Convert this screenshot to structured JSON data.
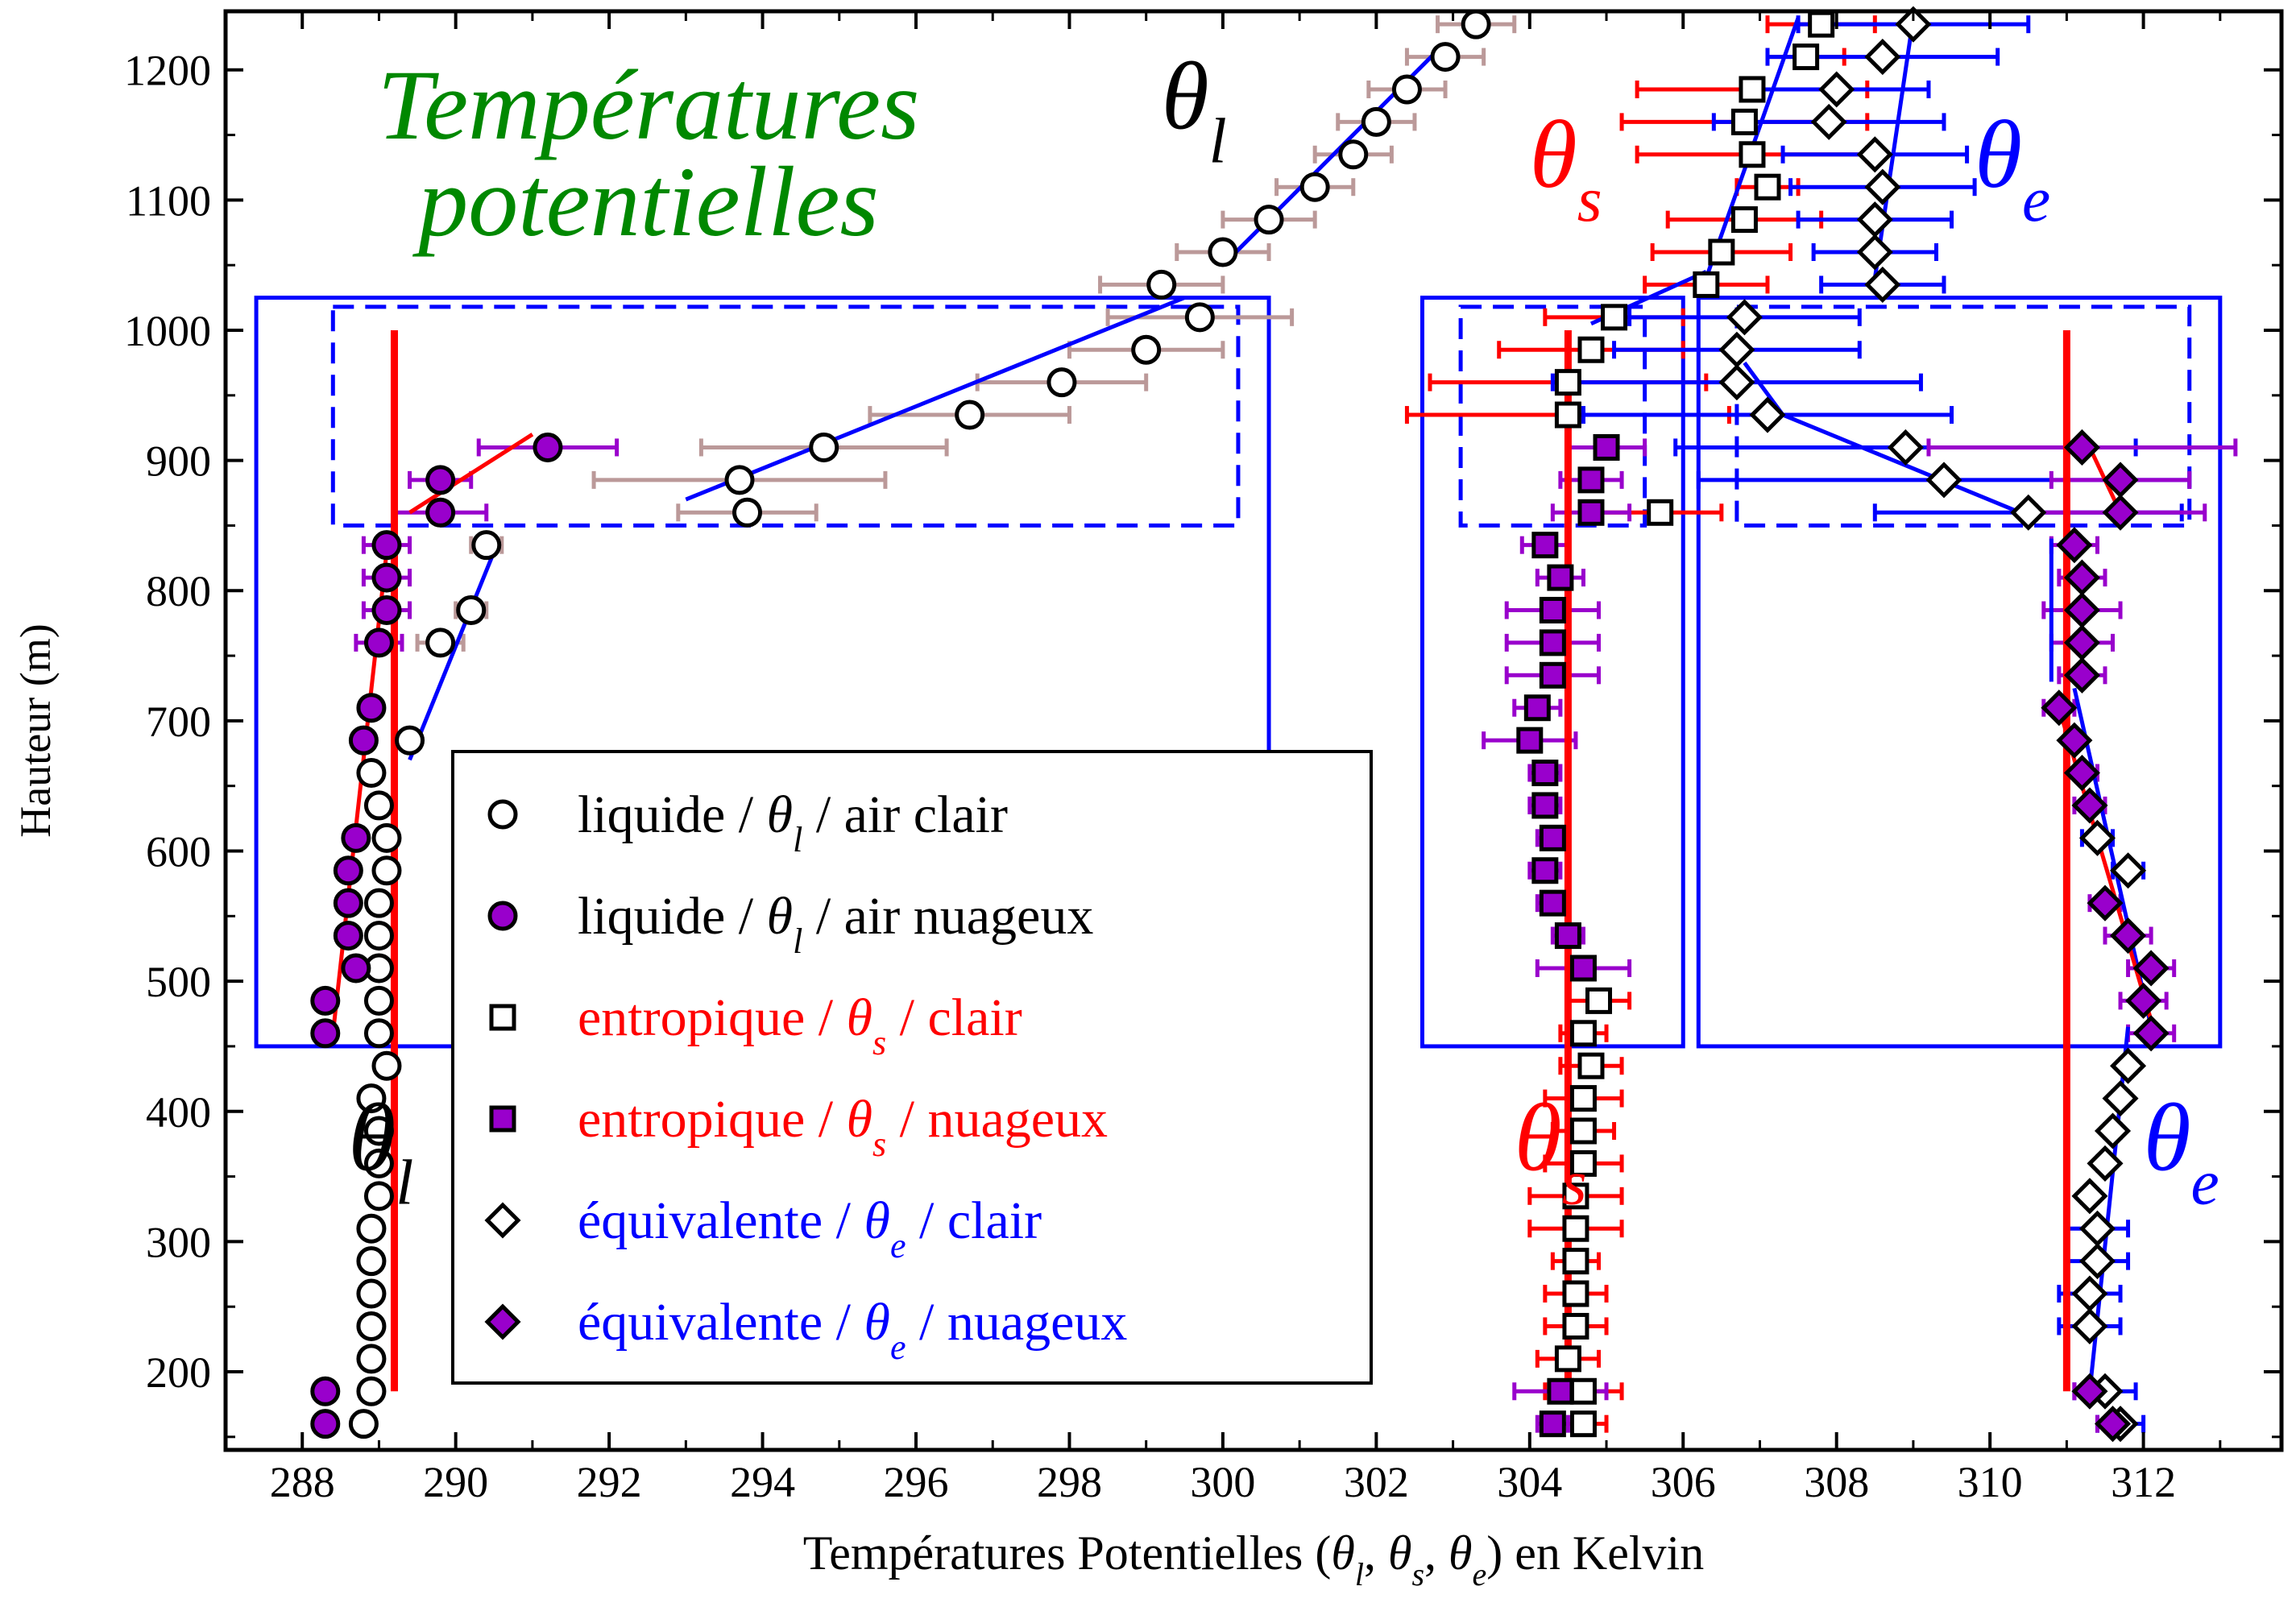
{
  "chart_data": {
    "type": "scatter",
    "title": "Températures potentielles",
    "title_lines": [
      "Températures",
      "potentielles"
    ],
    "xlabel": {
      "prefix": "Températures Potentielles (",
      "separator": ", ",
      "suffix": ") en Kelvin"
    },
    "ylabel": "Hauteur (m)",
    "xlim": [
      287,
      313.8
    ],
    "ylim": [
      140,
      1245
    ],
    "x_ticks": [
      288,
      290,
      292,
      294,
      296,
      298,
      300,
      302,
      304,
      306,
      308,
      310,
      312
    ],
    "x_tick_labels": [
      "288",
      "290",
      "292",
      "294",
      "296",
      "298",
      "300",
      "302",
      "304",
      "306",
      "308",
      "310",
      "312"
    ],
    "y_ticks": [
      200,
      300,
      400,
      500,
      600,
      700,
      800,
      900,
      1000,
      1100,
      1200
    ],
    "y_tick_labels": [
      "200",
      "300",
      "400",
      "500",
      "600",
      "700",
      "800",
      "900",
      "1000",
      "1100",
      "1200"
    ],
    "grid": false,
    "legend_position": "center",
    "symbols": {
      "theta_l": {
        "base": "θ",
        "sub": "l"
      },
      "theta_s": {
        "base": "θ",
        "sub": "s"
      },
      "theta_e": {
        "base": "θ",
        "sub": "e"
      }
    },
    "legend": [
      {
        "series": "theta_l_clear",
        "pre": "liquide / ",
        "sym": "theta_l",
        "post": " / air clair",
        "color": "#000000"
      },
      {
        "series": "theta_l_cloudy",
        "pre": "liquide / ",
        "sym": "theta_l",
        "post": " / air nuageux",
        "color": "#000000"
      },
      {
        "series": "theta_s_clear",
        "pre": "entropique / ",
        "sym": "theta_s",
        "post": " / clair",
        "color": "#ff0000"
      },
      {
        "series": "theta_s_cloudy",
        "pre": "entropique / ",
        "sym": "theta_s",
        "post": " / nuageux",
        "color": "#ff0000"
      },
      {
        "series": "theta_e_clear",
        "pre": "équivalente / ",
        "sym": "theta_e",
        "post": " / clair",
        "color": "#0000ff"
      },
      {
        "series": "theta_e_cloudy",
        "pre": "équivalente / ",
        "sym": "theta_e",
        "post": " / nuageux",
        "color": "#0000ff"
      }
    ],
    "annotations": [
      {
        "sym": "theta_l",
        "x": 299.2,
        "y": 1155,
        "color": "#000000"
      },
      {
        "sym": "theta_l",
        "x": 288.6,
        "y": 355,
        "color": "#000000"
      },
      {
        "sym": "theta_s",
        "x": 304.0,
        "y": 1110,
        "color": "#ff0000"
      },
      {
        "sym": "theta_e",
        "x": 309.8,
        "y": 1110,
        "color": "#0000ff"
      },
      {
        "sym": "theta_s",
        "x": 303.8,
        "y": 355,
        "color": "#ff0000"
      },
      {
        "sym": "theta_e",
        "x": 312.0,
        "y": 355,
        "color": "#0000ff"
      }
    ],
    "colors": {
      "title": "#008800",
      "theta_s": "#ff0000",
      "theta_e": "#0000ff",
      "cloudy_fill": "#9900cc",
      "errbar_l": "#bb9999",
      "errbar_cloudy": "#9900cc",
      "boxes": "#0000ff"
    },
    "series": [
      {
        "id": "theta_l_clear",
        "name": "liquide / θl / air clair",
        "marker": "circle",
        "fill": "#ffffff",
        "err_color": "#bb9999",
        "x": [
          303.3,
          302.9,
          302.4,
          302.0,
          301.7,
          301.2,
          300.6,
          300.0,
          299.2,
          299.7,
          299.0,
          297.9,
          296.7,
          294.8,
          293.7,
          293.8,
          290.4,
          290.2,
          289.8,
          289.4,
          289.1,
          289.1,
          289.0,
          289.0,
          289.0,
          289.0,
          289.0,
          289.1,
          288.9,
          289.0,
          289.0,
          289.0,
          288.9,
          288.9,
          288.9,
          288.9,
          288.9,
          288.9,
          288.8,
          289.0,
          288.9
        ],
        "y": [
          1235,
          1210,
          1185,
          1160,
          1135,
          1110,
          1085,
          1060,
          1035,
          1010,
          985,
          960,
          935,
          910,
          885,
          860,
          835,
          785,
          760,
          685,
          610,
          585,
          560,
          535,
          510,
          485,
          460,
          435,
          410,
          385,
          360,
          335,
          310,
          285,
          260,
          235,
          210,
          185,
          160,
          635,
          660
        ],
        "xerr": [
          0.5,
          0.5,
          0.5,
          0.5,
          0.5,
          0.5,
          0.6,
          0.6,
          0.8,
          1.2,
          1.0,
          1.1,
          1.3,
          1.6,
          1.9,
          0.9,
          0.2,
          0.2,
          0.3,
          0,
          0,
          0,
          0,
          0,
          0,
          0,
          0,
          0,
          0,
          0,
          0,
          0,
          0,
          0,
          0,
          0,
          0,
          0,
          0,
          0,
          0
        ]
      },
      {
        "id": "theta_l_cloudy",
        "name": "liquide / θl / air nuageux",
        "marker": "circle",
        "fill": "#9900cc",
        "err_color": "#9900cc",
        "x": [
          291.2,
          289.8,
          289.8,
          289.1,
          289.1,
          289.1,
          289.0,
          288.9,
          288.8,
          288.7,
          288.6,
          288.6,
          288.6,
          288.7,
          288.3,
          288.3,
          288.3,
          288.3
        ],
        "y": [
          910,
          885,
          860,
          835,
          810,
          785,
          760,
          710,
          685,
          610,
          585,
          560,
          535,
          510,
          485,
          460,
          185,
          160
        ],
        "xerr": [
          0.9,
          0.4,
          0.6,
          0.3,
          0.3,
          0.3,
          0.3,
          0,
          0,
          0,
          0,
          0,
          0,
          0,
          0,
          0,
          0,
          0
        ]
      },
      {
        "id": "theta_s_clear",
        "name": "entropique / θs / clair",
        "marker": "square",
        "fill": "#ffffff",
        "err_color": "#ff0000",
        "x": [
          307.8,
          307.6,
          306.9,
          306.8,
          306.9,
          307.1,
          306.8,
          306.5,
          306.3,
          305.1,
          304.8,
          304.5,
          304.5,
          305.7,
          304.9,
          304.7,
          304.8,
          304.7,
          304.7,
          304.7,
          304.6,
          304.6,
          304.6,
          304.6,
          304.6,
          304.5,
          304.7,
          304.7
        ],
        "y": [
          1235,
          1210,
          1185,
          1160,
          1135,
          1110,
          1085,
          1060,
          1035,
          1010,
          985,
          960,
          935,
          860,
          485,
          460,
          435,
          410,
          385,
          360,
          335,
          310,
          285,
          260,
          235,
          210,
          185,
          160
        ],
        "xerr": [
          0.7,
          0.5,
          1.5,
          1.6,
          1.5,
          0.4,
          1.0,
          0.9,
          0.8,
          0.9,
          1.2,
          1.8,
          2.1,
          0.8,
          0.4,
          0.3,
          0.4,
          0.5,
          0.4,
          0.5,
          0.6,
          0.6,
          0.3,
          0.4,
          0.4,
          0.4,
          0.5,
          0.3
        ]
      },
      {
        "id": "theta_s_cloudy",
        "name": "entropique / θs / nuageux",
        "marker": "square",
        "fill": "#9900cc",
        "err_color": "#9900cc",
        "x": [
          305.0,
          304.8,
          304.8,
          304.2,
          304.4,
          304.3,
          304.3,
          304.3,
          304.1,
          304.0,
          304.2,
          304.2,
          304.3,
          304.2,
          304.3,
          304.5,
          304.7,
          304.4,
          304.3
        ],
        "y": [
          910,
          885,
          860,
          835,
          810,
          785,
          760,
          735,
          710,
          685,
          660,
          635,
          610,
          585,
          560,
          535,
          510,
          185,
          160
        ],
        "xerr": [
          0.5,
          0.4,
          0.5,
          0.3,
          0.3,
          0.6,
          0.6,
          0.6,
          0.3,
          0.6,
          0.2,
          0.2,
          0.2,
          0.2,
          0.2,
          0.2,
          0.6,
          0.6,
          0.2
        ]
      },
      {
        "id": "theta_e_clear",
        "name": "équivalente / θe / clair",
        "marker": "diamond",
        "fill": "#ffffff",
        "err_color": "#0000ff",
        "x": [
          309.0,
          308.6,
          308.0,
          307.9,
          308.5,
          308.6,
          308.5,
          308.5,
          308.6,
          306.8,
          306.7,
          306.7,
          307.1,
          308.9,
          309.4,
          310.5,
          311.4,
          311.8,
          311.8,
          311.7,
          311.6,
          311.5,
          311.3,
          311.4,
          311.4,
          311.3,
          311.3,
          311.5,
          311.7
        ],
        "y": [
          1235,
          1210,
          1185,
          1160,
          1135,
          1110,
          1085,
          1060,
          1035,
          1010,
          985,
          960,
          935,
          910,
          885,
          860,
          610,
          585,
          435,
          410,
          385,
          360,
          335,
          310,
          285,
          260,
          235,
          185,
          160
        ],
        "xerr": [
          1.5,
          1.5,
          1.2,
          1.5,
          1.2,
          1.2,
          1.0,
          0.8,
          0.8,
          1.5,
          1.6,
          2.4,
          2.4,
          3.0,
          3.2,
          2.0,
          0.2,
          0.2,
          0.1,
          0.1,
          0.1,
          0.1,
          0.1,
          0.4,
          0.4,
          0.4,
          0.4,
          0.4,
          0.3
        ]
      },
      {
        "id": "theta_e_cloudy",
        "name": "équivalente / θe / nuageux",
        "marker": "diamond",
        "fill": "#9900cc",
        "err_color": "#9900cc",
        "x": [
          311.2,
          311.7,
          311.7,
          311.1,
          311.2,
          311.2,
          311.2,
          311.2,
          310.9,
          311.1,
          311.2,
          311.3,
          311.5,
          311.8,
          312.1,
          312.0,
          312.1,
          311.3,
          311.6
        ],
        "y": [
          910,
          885,
          860,
          835,
          810,
          785,
          760,
          735,
          710,
          685,
          660,
          635,
          560,
          535,
          510,
          485,
          460,
          185,
          160
        ],
        "xerr": [
          2.0,
          0.9,
          1.1,
          0.3,
          0.3,
          0.5,
          0.4,
          0.3,
          0.2,
          0.1,
          0.2,
          0.2,
          0.2,
          0.3,
          0.3,
          0.3,
          0.3,
          0.2,
          0.2
        ]
      }
    ],
    "fit_lines": [
      {
        "color": "#0000ff",
        "width": 5,
        "points": [
          [
            300.0,
            1050
          ],
          [
            302.8,
            1215
          ]
        ]
      },
      {
        "color": "#0000ff",
        "width": 5,
        "points": [
          [
            293.0,
            870
          ],
          [
            299.5,
            1025
          ]
        ]
      },
      {
        "color": "#0000ff",
        "width": 5,
        "points": [
          [
            289.4,
            670
          ],
          [
            290.5,
            830
          ]
        ]
      },
      {
        "color": "#ff0000",
        "width": 5,
        "points": [
          [
            289.4,
            860
          ],
          [
            291.0,
            920
          ]
        ]
      },
      {
        "color": "#ff0000",
        "width": 5,
        "points": [
          [
            288.4,
            460
          ],
          [
            289.1,
            830
          ]
        ]
      },
      {
        "color": "#ff0000",
        "width": 9,
        "points": [
          [
            289.2,
            185
          ],
          [
            289.2,
            1000
          ]
        ]
      },
      {
        "color": "#0000ff",
        "width": 5,
        "points": [
          [
            306.3,
            1040
          ],
          [
            307.5,
            1240
          ]
        ]
      },
      {
        "color": "#0000ff",
        "width": 5,
        "points": [
          [
            304.8,
            1005
          ],
          [
            306.3,
            1045
          ]
        ]
      },
      {
        "color": "#0000ff",
        "width": 5,
        "points": [
          [
            308.5,
            1040
          ],
          [
            309.0,
            1240
          ]
        ]
      },
      {
        "color": "#0000ff",
        "width": 5,
        "points": [
          [
            306.8,
            975
          ],
          [
            307.3,
            935
          ]
        ]
      },
      {
        "color": "#0000ff",
        "width": 5,
        "points": [
          [
            307.3,
            935
          ],
          [
            310.6,
            855
          ]
        ]
      },
      {
        "color": "#ff0000",
        "width": 5,
        "points": [
          [
            311.3,
            910
          ],
          [
            311.7,
            860
          ]
        ]
      },
      {
        "color": "#0000ff",
        "width": 5,
        "points": [
          [
            310.8,
            730
          ],
          [
            310.8,
            840
          ]
        ]
      },
      {
        "color": "#0000ff",
        "width": 5,
        "points": [
          [
            311.1,
            725
          ],
          [
            312.1,
            465
          ]
        ]
      },
      {
        "color": "#ff0000",
        "width": 5,
        "points": [
          [
            310.9,
            710
          ],
          [
            312.1,
            470
          ]
        ]
      },
      {
        "color": "#0000ff",
        "width": 5,
        "points": [
          [
            311.3,
            185
          ],
          [
            311.8,
            465
          ]
        ]
      },
      {
        "color": "#ff0000",
        "width": 9,
        "points": [
          [
            304.5,
            185
          ],
          [
            304.5,
            1000
          ]
        ]
      },
      {
        "color": "#ff0000",
        "width": 9,
        "points": [
          [
            311.0,
            185
          ],
          [
            311.0,
            1000
          ]
        ]
      }
    ],
    "boxes": [
      {
        "style": "solid",
        "x0": 287.4,
        "x1": 300.6,
        "y0": 450,
        "y1": 1025
      },
      {
        "style": "dashed",
        "x0": 288.4,
        "x1": 300.2,
        "y0": 850,
        "y1": 1018
      },
      {
        "style": "solid",
        "x0": 302.6,
        "x1": 306.0,
        "y0": 450,
        "y1": 1025
      },
      {
        "style": "dashed",
        "x0": 303.1,
        "x1": 305.5,
        "y0": 850,
        "y1": 1018
      },
      {
        "style": "solid",
        "x0": 306.2,
        "x1": 313.0,
        "y0": 450,
        "y1": 1025
      },
      {
        "style": "dashed",
        "x0": 306.7,
        "x1": 312.6,
        "y0": 850,
        "y1": 1018
      }
    ]
  }
}
